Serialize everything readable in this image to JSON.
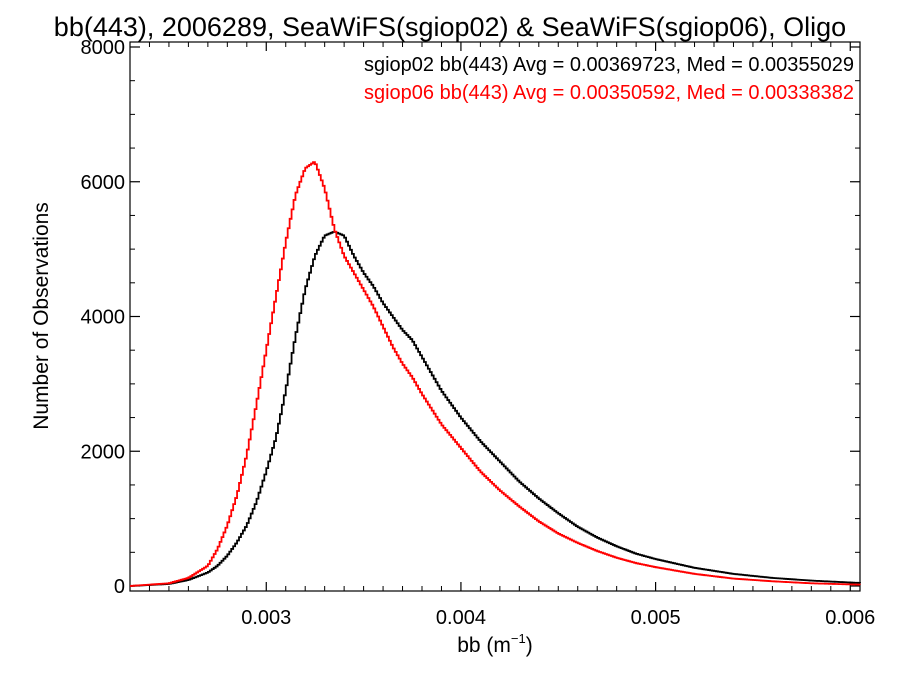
{
  "chart_data": {
    "type": "line",
    "title": "bb(443), 2006289, SeaWiFS(sgiop02) & SeaWiFS(sgiop06), Oligo",
    "xlabel": "bb (m",
    "xlabel_sup": "−1",
    "xlabel_close": ")",
    "ylabel": "Number of Observations",
    "xlim": [
      0.0023,
      0.00605
    ],
    "ylim": [
      0,
      8000
    ],
    "xticks": [
      {
        "value": 0.003,
        "label": "0.003"
      },
      {
        "value": 0.004,
        "label": "0.004"
      },
      {
        "value": 0.005,
        "label": "0.005"
      },
      {
        "value": 0.006,
        "label": "0.006"
      }
    ],
    "yticks": [
      {
        "value": 0,
        "label": "0"
      },
      {
        "value": 2000,
        "label": "2000"
      },
      {
        "value": 4000,
        "label": "4000"
      },
      {
        "value": 6000,
        "label": "6000"
      },
      {
        "value": 8000,
        "label": "8000"
      }
    ],
    "grid": false,
    "legend_position": "top-right",
    "series": [
      {
        "legend": "sgiop02 bb(443) Avg = 0.00369723, Med = 0.00355029",
        "color": "#000000",
        "x": [
          0.0023,
          0.0025,
          0.0026,
          0.0027,
          0.00275,
          0.0028,
          0.00285,
          0.0029,
          0.00295,
          0.003,
          0.00305,
          0.0031,
          0.00315,
          0.0032,
          0.00325,
          0.0033,
          0.00335,
          0.0034,
          0.00345,
          0.0035,
          0.00355,
          0.0036,
          0.00365,
          0.0037,
          0.00375,
          0.0038,
          0.0039,
          0.004,
          0.0041,
          0.0042,
          0.0043,
          0.0044,
          0.0045,
          0.0046,
          0.0047,
          0.0048,
          0.0049,
          0.005,
          0.0052,
          0.0054,
          0.0056,
          0.0058,
          0.00605
        ],
        "y": [
          0,
          30,
          90,
          200,
          300,
          450,
          650,
          900,
          1250,
          1700,
          2200,
          2900,
          3700,
          4400,
          4900,
          5200,
          5260,
          5200,
          4900,
          4650,
          4450,
          4200,
          4000,
          3800,
          3650,
          3400,
          2900,
          2500,
          2150,
          1850,
          1550,
          1300,
          1080,
          880,
          720,
          590,
          480,
          400,
          270,
          180,
          120,
          80,
          45
        ]
      },
      {
        "legend": "sgiop06 bb(443) Avg = 0.00350592, Med = 0.00338382",
        "color": "#ff0000",
        "x": [
          0.0023,
          0.0025,
          0.0026,
          0.0027,
          0.00275,
          0.0028,
          0.00285,
          0.0029,
          0.00295,
          0.003,
          0.00305,
          0.0031,
          0.00315,
          0.0032,
          0.00325,
          0.0033,
          0.00335,
          0.0034,
          0.00345,
          0.0035,
          0.00355,
          0.0036,
          0.00365,
          0.0037,
          0.00375,
          0.0038,
          0.0039,
          0.004,
          0.0041,
          0.0042,
          0.0043,
          0.0044,
          0.0045,
          0.0046,
          0.0047,
          0.0048,
          0.0049,
          0.005,
          0.0052,
          0.0054,
          0.0056,
          0.0058,
          0.00605
        ],
        "y": [
          0,
          40,
          120,
          300,
          550,
          900,
          1350,
          1950,
          2700,
          3500,
          4300,
          5100,
          5800,
          6200,
          6300,
          5900,
          5300,
          4900,
          4650,
          4400,
          4150,
          3850,
          3550,
          3300,
          3100,
          2850,
          2400,
          2050,
          1700,
          1420,
          1180,
          960,
          780,
          640,
          520,
          420,
          340,
          280,
          180,
          110,
          70,
          40,
          20
        ]
      }
    ]
  }
}
